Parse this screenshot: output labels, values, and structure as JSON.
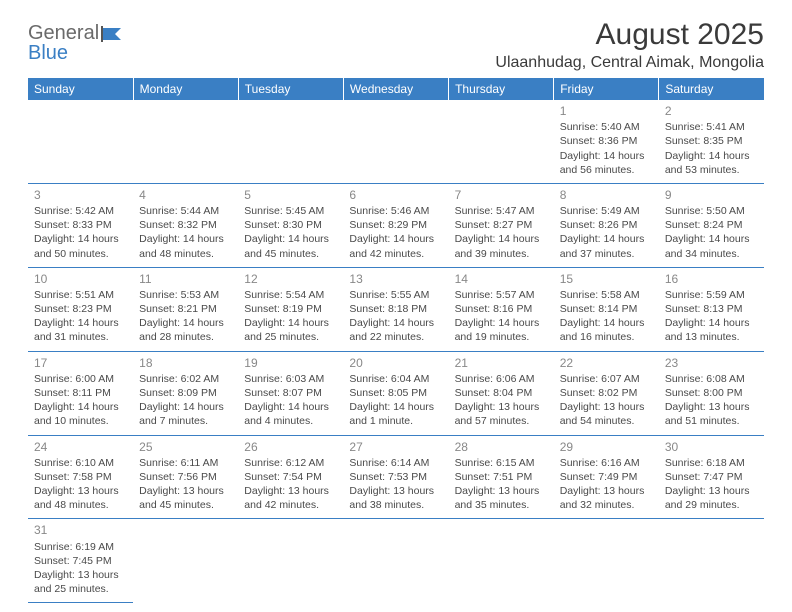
{
  "logo": {
    "text1": "General",
    "text2": "Blue"
  },
  "title": "August 2025",
  "location": "Ulaanhudag, Central Aimak, Mongolia",
  "colors": {
    "header_bg": "#3a7fc4",
    "header_text": "#ffffff",
    "border": "#3a7fc4",
    "daynum": "#888888",
    "body_text": "#4a4a4a",
    "title_text": "#3a3a3a"
  },
  "daysOfWeek": [
    "Sunday",
    "Monday",
    "Tuesday",
    "Wednesday",
    "Thursday",
    "Friday",
    "Saturday"
  ],
  "weeks": [
    [
      null,
      null,
      null,
      null,
      null,
      {
        "n": "1",
        "sunrise": "Sunrise: 5:40 AM",
        "sunset": "Sunset: 8:36 PM",
        "daylight": "Daylight: 14 hours and 56 minutes."
      },
      {
        "n": "2",
        "sunrise": "Sunrise: 5:41 AM",
        "sunset": "Sunset: 8:35 PM",
        "daylight": "Daylight: 14 hours and 53 minutes."
      }
    ],
    [
      {
        "n": "3",
        "sunrise": "Sunrise: 5:42 AM",
        "sunset": "Sunset: 8:33 PM",
        "daylight": "Daylight: 14 hours and 50 minutes."
      },
      {
        "n": "4",
        "sunrise": "Sunrise: 5:44 AM",
        "sunset": "Sunset: 8:32 PM",
        "daylight": "Daylight: 14 hours and 48 minutes."
      },
      {
        "n": "5",
        "sunrise": "Sunrise: 5:45 AM",
        "sunset": "Sunset: 8:30 PM",
        "daylight": "Daylight: 14 hours and 45 minutes."
      },
      {
        "n": "6",
        "sunrise": "Sunrise: 5:46 AM",
        "sunset": "Sunset: 8:29 PM",
        "daylight": "Daylight: 14 hours and 42 minutes."
      },
      {
        "n": "7",
        "sunrise": "Sunrise: 5:47 AM",
        "sunset": "Sunset: 8:27 PM",
        "daylight": "Daylight: 14 hours and 39 minutes."
      },
      {
        "n": "8",
        "sunrise": "Sunrise: 5:49 AM",
        "sunset": "Sunset: 8:26 PM",
        "daylight": "Daylight: 14 hours and 37 minutes."
      },
      {
        "n": "9",
        "sunrise": "Sunrise: 5:50 AM",
        "sunset": "Sunset: 8:24 PM",
        "daylight": "Daylight: 14 hours and 34 minutes."
      }
    ],
    [
      {
        "n": "10",
        "sunrise": "Sunrise: 5:51 AM",
        "sunset": "Sunset: 8:23 PM",
        "daylight": "Daylight: 14 hours and 31 minutes."
      },
      {
        "n": "11",
        "sunrise": "Sunrise: 5:53 AM",
        "sunset": "Sunset: 8:21 PM",
        "daylight": "Daylight: 14 hours and 28 minutes."
      },
      {
        "n": "12",
        "sunrise": "Sunrise: 5:54 AM",
        "sunset": "Sunset: 8:19 PM",
        "daylight": "Daylight: 14 hours and 25 minutes."
      },
      {
        "n": "13",
        "sunrise": "Sunrise: 5:55 AM",
        "sunset": "Sunset: 8:18 PM",
        "daylight": "Daylight: 14 hours and 22 minutes."
      },
      {
        "n": "14",
        "sunrise": "Sunrise: 5:57 AM",
        "sunset": "Sunset: 8:16 PM",
        "daylight": "Daylight: 14 hours and 19 minutes."
      },
      {
        "n": "15",
        "sunrise": "Sunrise: 5:58 AM",
        "sunset": "Sunset: 8:14 PM",
        "daylight": "Daylight: 14 hours and 16 minutes."
      },
      {
        "n": "16",
        "sunrise": "Sunrise: 5:59 AM",
        "sunset": "Sunset: 8:13 PM",
        "daylight": "Daylight: 14 hours and 13 minutes."
      }
    ],
    [
      {
        "n": "17",
        "sunrise": "Sunrise: 6:00 AM",
        "sunset": "Sunset: 8:11 PM",
        "daylight": "Daylight: 14 hours and 10 minutes."
      },
      {
        "n": "18",
        "sunrise": "Sunrise: 6:02 AM",
        "sunset": "Sunset: 8:09 PM",
        "daylight": "Daylight: 14 hours and 7 minutes."
      },
      {
        "n": "19",
        "sunrise": "Sunrise: 6:03 AM",
        "sunset": "Sunset: 8:07 PM",
        "daylight": "Daylight: 14 hours and 4 minutes."
      },
      {
        "n": "20",
        "sunrise": "Sunrise: 6:04 AM",
        "sunset": "Sunset: 8:05 PM",
        "daylight": "Daylight: 14 hours and 1 minute."
      },
      {
        "n": "21",
        "sunrise": "Sunrise: 6:06 AM",
        "sunset": "Sunset: 8:04 PM",
        "daylight": "Daylight: 13 hours and 57 minutes."
      },
      {
        "n": "22",
        "sunrise": "Sunrise: 6:07 AM",
        "sunset": "Sunset: 8:02 PM",
        "daylight": "Daylight: 13 hours and 54 minutes."
      },
      {
        "n": "23",
        "sunrise": "Sunrise: 6:08 AM",
        "sunset": "Sunset: 8:00 PM",
        "daylight": "Daylight: 13 hours and 51 minutes."
      }
    ],
    [
      {
        "n": "24",
        "sunrise": "Sunrise: 6:10 AM",
        "sunset": "Sunset: 7:58 PM",
        "daylight": "Daylight: 13 hours and 48 minutes."
      },
      {
        "n": "25",
        "sunrise": "Sunrise: 6:11 AM",
        "sunset": "Sunset: 7:56 PM",
        "daylight": "Daylight: 13 hours and 45 minutes."
      },
      {
        "n": "26",
        "sunrise": "Sunrise: 6:12 AM",
        "sunset": "Sunset: 7:54 PM",
        "daylight": "Daylight: 13 hours and 42 minutes."
      },
      {
        "n": "27",
        "sunrise": "Sunrise: 6:14 AM",
        "sunset": "Sunset: 7:53 PM",
        "daylight": "Daylight: 13 hours and 38 minutes."
      },
      {
        "n": "28",
        "sunrise": "Sunrise: 6:15 AM",
        "sunset": "Sunset: 7:51 PM",
        "daylight": "Daylight: 13 hours and 35 minutes."
      },
      {
        "n": "29",
        "sunrise": "Sunrise: 6:16 AM",
        "sunset": "Sunset: 7:49 PM",
        "daylight": "Daylight: 13 hours and 32 minutes."
      },
      {
        "n": "30",
        "sunrise": "Sunrise: 6:18 AM",
        "sunset": "Sunset: 7:47 PM",
        "daylight": "Daylight: 13 hours and 29 minutes."
      }
    ],
    [
      {
        "n": "31",
        "sunrise": "Sunrise: 6:19 AM",
        "sunset": "Sunset: 7:45 PM",
        "daylight": "Daylight: 13 hours and 25 minutes."
      },
      null,
      null,
      null,
      null,
      null,
      null
    ]
  ]
}
